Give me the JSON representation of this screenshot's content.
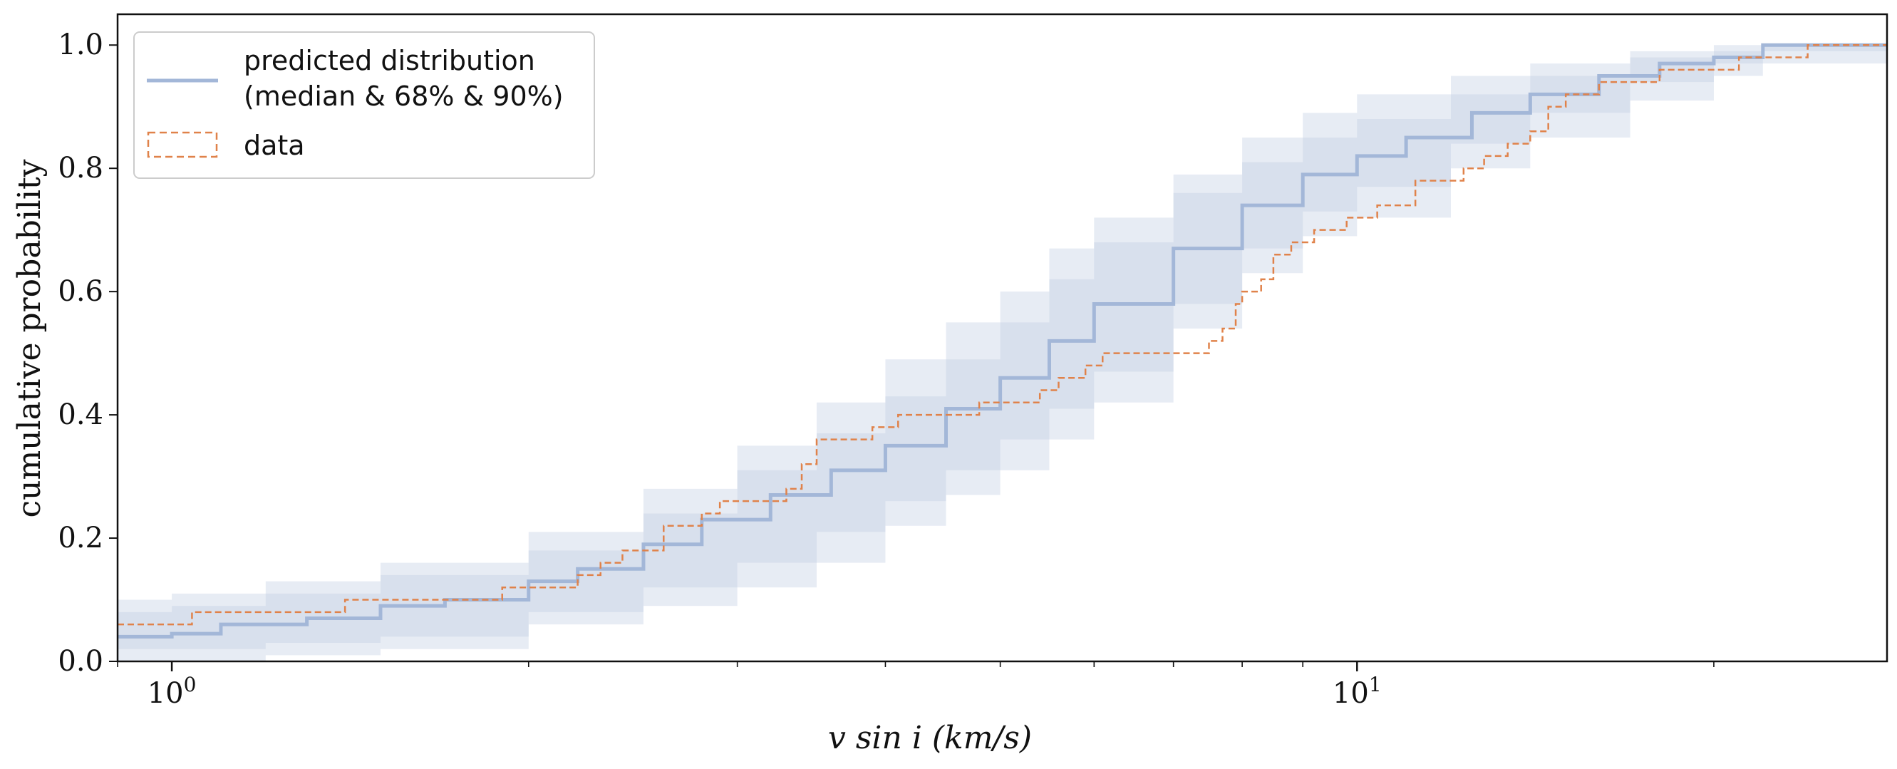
{
  "chart_data": {
    "type": "line",
    "xscale": "log",
    "xlabel": "v sin i (km/s)",
    "ylabel": "cumulative probability",
    "xlim": [
      0.9,
      28
    ],
    "ylim": [
      0.0,
      1.05
    ],
    "x_ticks_major": [
      {
        "value": 1,
        "label": "10^0"
      },
      {
        "value": 10,
        "label": "10^1"
      }
    ],
    "y_ticks": [
      0.0,
      0.2,
      0.4,
      0.6,
      0.8,
      1.0
    ],
    "y_tick_labels": [
      "0.0",
      "0.2",
      "0.4",
      "0.6",
      "0.8",
      "1.0"
    ],
    "legend": {
      "position": "upper-left",
      "entries": [
        {
          "label_line1": "predicted distribution",
          "label_line2": "(median & 68% & 90%)",
          "style": "solid"
        },
        {
          "label": "data",
          "style": "dashed"
        }
      ]
    },
    "colors": {
      "predicted": "#a3b7d8",
      "band": "#d3dceb",
      "data": "#e0824a"
    },
    "median": {
      "x": [
        0.9,
        1.0,
        1.1,
        1.3,
        1.5,
        1.7,
        2.0,
        2.2,
        2.5,
        2.8,
        3.2,
        3.6,
        4.0,
        4.5,
        5.0,
        5.5,
        6.0,
        7.0,
        8.0,
        9.0,
        10.0,
        11.0,
        12.5,
        14.0,
        16.0,
        18.0,
        20.0,
        22.0,
        28.0
      ],
      "y": [
        0.04,
        0.045,
        0.06,
        0.07,
        0.09,
        0.1,
        0.13,
        0.15,
        0.19,
        0.23,
        0.27,
        0.31,
        0.35,
        0.41,
        0.46,
        0.52,
        0.58,
        0.67,
        0.74,
        0.79,
        0.82,
        0.85,
        0.89,
        0.92,
        0.95,
        0.97,
        0.98,
        1.0,
        1.0
      ]
    },
    "band68": {
      "x": [
        0.9,
        1.0,
        1.2,
        1.5,
        2.0,
        2.5,
        3.0,
        3.5,
        4.0,
        4.5,
        5.0,
        5.5,
        6.0,
        7.0,
        8.0,
        9.0,
        10.0,
        12.0,
        14.0,
        17.0,
        20.0,
        22.0,
        28.0
      ],
      "lower": [
        0.02,
        0.02,
        0.03,
        0.04,
        0.08,
        0.12,
        0.16,
        0.21,
        0.26,
        0.31,
        0.36,
        0.41,
        0.47,
        0.58,
        0.67,
        0.73,
        0.77,
        0.84,
        0.89,
        0.94,
        0.97,
        0.99,
        1.0
      ],
      "upper": [
        0.08,
        0.09,
        0.11,
        0.14,
        0.18,
        0.24,
        0.31,
        0.37,
        0.43,
        0.49,
        0.55,
        0.62,
        0.68,
        0.76,
        0.81,
        0.85,
        0.88,
        0.92,
        0.95,
        0.98,
        0.99,
        1.0,
        1.0
      ]
    },
    "band90": {
      "x": [
        0.9,
        1.0,
        1.2,
        1.5,
        2.0,
        2.5,
        3.0,
        3.5,
        4.0,
        4.5,
        5.0,
        5.5,
        6.0,
        7.0,
        8.0,
        9.0,
        10.0,
        12.0,
        14.0,
        17.0,
        20.0,
        22.0,
        28.0
      ],
      "lower": [
        0.0,
        0.0,
        0.01,
        0.02,
        0.06,
        0.09,
        0.12,
        0.16,
        0.22,
        0.27,
        0.31,
        0.36,
        0.42,
        0.54,
        0.63,
        0.69,
        0.72,
        0.8,
        0.85,
        0.91,
        0.95,
        0.97,
        1.0
      ],
      "upper": [
        0.1,
        0.11,
        0.13,
        0.16,
        0.21,
        0.28,
        0.35,
        0.42,
        0.49,
        0.55,
        0.6,
        0.67,
        0.72,
        0.79,
        0.85,
        0.89,
        0.92,
        0.95,
        0.97,
        0.99,
        1.0,
        1.0,
        1.0
      ]
    },
    "data_step": {
      "x": [
        0.9,
        1.04,
        1.4,
        1.7,
        1.9,
        2.2,
        2.3,
        2.4,
        2.6,
        2.8,
        2.9,
        3.3,
        3.4,
        3.5,
        3.9,
        4.1,
        4.8,
        5.4,
        5.6,
        5.9,
        6.1,
        7.5,
        7.7,
        7.9,
        8.0,
        8.3,
        8.5,
        8.8,
        9.2,
        9.8,
        10.4,
        11.2,
        12.3,
        12.8,
        13.4,
        14.0,
        14.5,
        15.0,
        16.0,
        18.0,
        21.0,
        24.0,
        28.0
      ],
      "y": [
        0.06,
        0.08,
        0.1,
        0.1,
        0.12,
        0.14,
        0.16,
        0.18,
        0.22,
        0.24,
        0.26,
        0.28,
        0.32,
        0.36,
        0.38,
        0.4,
        0.42,
        0.44,
        0.46,
        0.48,
        0.5,
        0.52,
        0.54,
        0.58,
        0.6,
        0.62,
        0.66,
        0.68,
        0.7,
        0.72,
        0.74,
        0.78,
        0.8,
        0.82,
        0.84,
        0.86,
        0.9,
        0.92,
        0.94,
        0.96,
        0.98,
        1.0,
        1.0
      ]
    }
  }
}
